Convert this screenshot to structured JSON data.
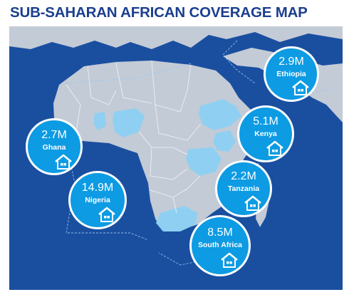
{
  "title": "SUB-SAHARAN AFRICAN COVERAGE MAP",
  "colors": {
    "title": "#1b3f8f",
    "ocean": "#1a4fa0",
    "land": "#c3cbd6",
    "highlight": "#8fd0f2",
    "callout": "#0d9be3"
  },
  "callouts": {
    "ethiopia": {
      "value": "2.9M",
      "label": "Ethiopia",
      "icon": "house-icon"
    },
    "kenya": {
      "value": "5.1M",
      "label": "Kenya",
      "icon": "house-icon"
    },
    "ghana": {
      "value": "2.7M",
      "label": "Ghana",
      "icon": "house-icon"
    },
    "nigeria": {
      "value": "14.9M",
      "label": "Nigeria",
      "icon": "house-icon"
    },
    "tanzania": {
      "value": "2.2M",
      "label": "Tanzania",
      "icon": "house-icon"
    },
    "south_africa": {
      "value": "8.5M",
      "label": "South Africa",
      "icon": "house-icon"
    }
  }
}
